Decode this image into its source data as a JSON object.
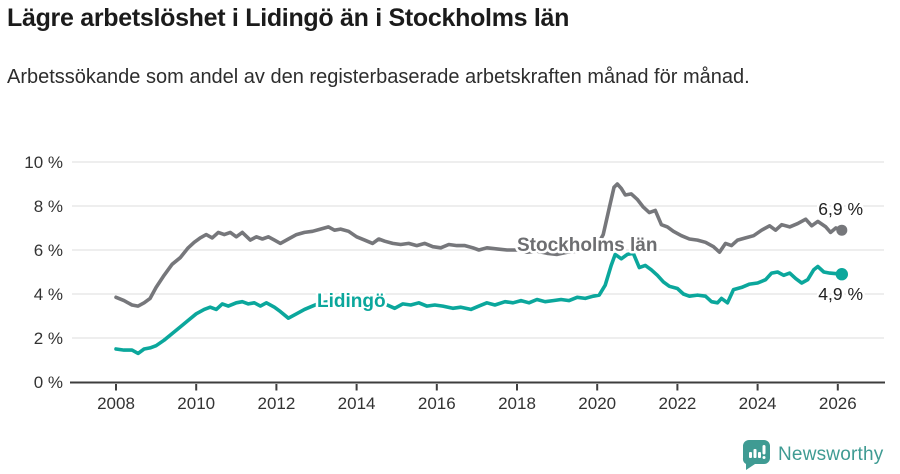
{
  "header": {
    "title": "Lägre arbetslöshet i Lidingö än i Stockholms län",
    "subtitle": "Arbetssökande som andel av den registerbaserade arbetskraften månad för månad."
  },
  "chart_data": {
    "type": "line",
    "title": "Lägre arbetslöshet i Lidingö än i Stockholms län",
    "subtitle": "Arbetssökande som andel av den registerbaserade arbetskraften månad för månad.",
    "unit": "%",
    "grid": "horizontal-only",
    "x_axis": {
      "ticks": [
        2008,
        2010,
        2012,
        2014,
        2016,
        2018,
        2020,
        2022,
        2024,
        2026
      ],
      "range": [
        2006.9,
        2027.15
      ]
    },
    "y_axis": {
      "tick_labels": [
        "10 %",
        "8 %",
        "6 %",
        "4 %",
        "2 %",
        "0 %"
      ],
      "tick_values": [
        10,
        8,
        6,
        4,
        2,
        0
      ],
      "range": [
        0,
        10
      ]
    },
    "series": [
      {
        "name": "Stockholms län",
        "color": "#76777b",
        "label_color": "#6d6e71",
        "end_label": "6,9 %",
        "end_value": 6.9,
        "points": [
          [
            2008.0,
            3.85
          ],
          [
            2008.2,
            3.7
          ],
          [
            2008.4,
            3.5
          ],
          [
            2008.55,
            3.45
          ],
          [
            2008.7,
            3.6
          ],
          [
            2008.85,
            3.8
          ],
          [
            2009.0,
            4.3
          ],
          [
            2009.2,
            4.85
          ],
          [
            2009.4,
            5.35
          ],
          [
            2009.6,
            5.65
          ],
          [
            2009.8,
            6.1
          ],
          [
            2009.95,
            6.35
          ],
          [
            2010.1,
            6.55
          ],
          [
            2010.25,
            6.7
          ],
          [
            2010.4,
            6.55
          ],
          [
            2010.55,
            6.8
          ],
          [
            2010.7,
            6.7
          ],
          [
            2010.85,
            6.8
          ],
          [
            2011.0,
            6.6
          ],
          [
            2011.15,
            6.8
          ],
          [
            2011.35,
            6.45
          ],
          [
            2011.5,
            6.6
          ],
          [
            2011.65,
            6.5
          ],
          [
            2011.8,
            6.6
          ],
          [
            2011.95,
            6.45
          ],
          [
            2012.1,
            6.3
          ],
          [
            2012.3,
            6.5
          ],
          [
            2012.5,
            6.7
          ],
          [
            2012.7,
            6.8
          ],
          [
            2012.9,
            6.85
          ],
          [
            2013.1,
            6.95
          ],
          [
            2013.3,
            7.05
          ],
          [
            2013.45,
            6.9
          ],
          [
            2013.6,
            6.95
          ],
          [
            2013.8,
            6.85
          ],
          [
            2014.0,
            6.6
          ],
          [
            2014.2,
            6.45
          ],
          [
            2014.4,
            6.3
          ],
          [
            2014.55,
            6.5
          ],
          [
            2014.7,
            6.4
          ],
          [
            2014.9,
            6.3
          ],
          [
            2015.1,
            6.25
          ],
          [
            2015.3,
            6.3
          ],
          [
            2015.5,
            6.2
          ],
          [
            2015.7,
            6.3
          ],
          [
            2015.9,
            6.15
          ],
          [
            2016.1,
            6.1
          ],
          [
            2016.3,
            6.25
          ],
          [
            2016.5,
            6.2
          ],
          [
            2016.7,
            6.2
          ],
          [
            2016.9,
            6.1
          ],
          [
            2017.05,
            6.0
          ],
          [
            2017.25,
            6.1
          ],
          [
            2017.5,
            6.05
          ],
          [
            2017.75,
            6.0
          ],
          [
            2018.0,
            6.0
          ],
          [
            2018.25,
            5.9
          ],
          [
            2018.5,
            5.95
          ],
          [
            2018.75,
            5.85
          ],
          [
            2019.0,
            5.8
          ],
          [
            2019.25,
            5.9
          ],
          [
            2019.5,
            5.95
          ],
          [
            2019.75,
            6.05
          ],
          [
            2020.0,
            6.2
          ],
          [
            2020.15,
            6.7
          ],
          [
            2020.3,
            7.9
          ],
          [
            2020.42,
            8.85
          ],
          [
            2020.5,
            9.0
          ],
          [
            2020.6,
            8.8
          ],
          [
            2020.7,
            8.5
          ],
          [
            2020.85,
            8.55
          ],
          [
            2021.0,
            8.3
          ],
          [
            2021.15,
            7.95
          ],
          [
            2021.3,
            7.7
          ],
          [
            2021.45,
            7.8
          ],
          [
            2021.6,
            7.15
          ],
          [
            2021.75,
            7.05
          ],
          [
            2021.9,
            6.85
          ],
          [
            2022.1,
            6.65
          ],
          [
            2022.3,
            6.5
          ],
          [
            2022.5,
            6.45
          ],
          [
            2022.7,
            6.35
          ],
          [
            2022.9,
            6.15
          ],
          [
            2023.05,
            5.9
          ],
          [
            2023.2,
            6.3
          ],
          [
            2023.35,
            6.2
          ],
          [
            2023.5,
            6.45
          ],
          [
            2023.7,
            6.55
          ],
          [
            2023.9,
            6.65
          ],
          [
            2024.1,
            6.9
          ],
          [
            2024.3,
            7.1
          ],
          [
            2024.45,
            6.9
          ],
          [
            2024.6,
            7.15
          ],
          [
            2024.8,
            7.05
          ],
          [
            2025.0,
            7.2
          ],
          [
            2025.2,
            7.4
          ],
          [
            2025.35,
            7.1
          ],
          [
            2025.5,
            7.3
          ],
          [
            2025.7,
            7.05
          ],
          [
            2025.82,
            6.8
          ],
          [
            2025.95,
            7.0
          ],
          [
            2026.1,
            6.9
          ]
        ]
      },
      {
        "name": "Lidingö",
        "color": "#0ba79c",
        "label_color": "#0ba79c",
        "end_label": "4,9 %",
        "end_value": 4.9,
        "points": [
          [
            2008.0,
            1.5
          ],
          [
            2008.2,
            1.45
          ],
          [
            2008.4,
            1.45
          ],
          [
            2008.55,
            1.3
          ],
          [
            2008.7,
            1.5
          ],
          [
            2008.85,
            1.55
          ],
          [
            2009.0,
            1.65
          ],
          [
            2009.2,
            1.9
          ],
          [
            2009.4,
            2.2
          ],
          [
            2009.6,
            2.5
          ],
          [
            2009.8,
            2.8
          ],
          [
            2010.0,
            3.1
          ],
          [
            2010.2,
            3.3
          ],
          [
            2010.35,
            3.4
          ],
          [
            2010.5,
            3.3
          ],
          [
            2010.65,
            3.55
          ],
          [
            2010.8,
            3.45
          ],
          [
            2011.0,
            3.6
          ],
          [
            2011.15,
            3.65
          ],
          [
            2011.3,
            3.55
          ],
          [
            2011.45,
            3.6
          ],
          [
            2011.6,
            3.45
          ],
          [
            2011.75,
            3.6
          ],
          [
            2011.95,
            3.4
          ],
          [
            2012.1,
            3.2
          ],
          [
            2012.3,
            2.9
          ],
          [
            2012.5,
            3.1
          ],
          [
            2012.7,
            3.3
          ],
          [
            2012.9,
            3.45
          ],
          [
            2013.1,
            3.6
          ],
          [
            2013.3,
            3.65
          ],
          [
            2013.5,
            3.6
          ],
          [
            2013.7,
            3.7
          ],
          [
            2013.9,
            3.6
          ],
          [
            2014.1,
            3.65
          ],
          [
            2014.3,
            3.55
          ],
          [
            2014.5,
            3.65
          ],
          [
            2014.7,
            3.55
          ],
          [
            2014.95,
            3.35
          ],
          [
            2015.15,
            3.55
          ],
          [
            2015.35,
            3.5
          ],
          [
            2015.55,
            3.6
          ],
          [
            2015.75,
            3.45
          ],
          [
            2015.95,
            3.5
          ],
          [
            2016.15,
            3.45
          ],
          [
            2016.4,
            3.35
          ],
          [
            2016.6,
            3.4
          ],
          [
            2016.85,
            3.3
          ],
          [
            2017.05,
            3.45
          ],
          [
            2017.25,
            3.6
          ],
          [
            2017.45,
            3.5
          ],
          [
            2017.7,
            3.65
          ],
          [
            2017.9,
            3.6
          ],
          [
            2018.1,
            3.7
          ],
          [
            2018.3,
            3.6
          ],
          [
            2018.5,
            3.75
          ],
          [
            2018.7,
            3.65
          ],
          [
            2018.9,
            3.7
          ],
          [
            2019.1,
            3.75
          ],
          [
            2019.3,
            3.7
          ],
          [
            2019.5,
            3.85
          ],
          [
            2019.7,
            3.8
          ],
          [
            2019.9,
            3.9
          ],
          [
            2020.05,
            3.95
          ],
          [
            2020.2,
            4.4
          ],
          [
            2020.35,
            5.3
          ],
          [
            2020.45,
            5.8
          ],
          [
            2020.6,
            5.6
          ],
          [
            2020.75,
            5.8
          ],
          [
            2020.9,
            5.85
          ],
          [
            2021.05,
            5.2
          ],
          [
            2021.2,
            5.3
          ],
          [
            2021.35,
            5.1
          ],
          [
            2021.5,
            4.85
          ],
          [
            2021.65,
            4.55
          ],
          [
            2021.8,
            4.35
          ],
          [
            2022.0,
            4.25
          ],
          [
            2022.15,
            4.0
          ],
          [
            2022.3,
            3.9
          ],
          [
            2022.5,
            3.95
          ],
          [
            2022.7,
            3.9
          ],
          [
            2022.85,
            3.65
          ],
          [
            2023.0,
            3.6
          ],
          [
            2023.1,
            3.8
          ],
          [
            2023.25,
            3.6
          ],
          [
            2023.4,
            4.2
          ],
          [
            2023.6,
            4.3
          ],
          [
            2023.8,
            4.45
          ],
          [
            2024.0,
            4.5
          ],
          [
            2024.2,
            4.65
          ],
          [
            2024.35,
            4.95
          ],
          [
            2024.5,
            5.0
          ],
          [
            2024.65,
            4.85
          ],
          [
            2024.8,
            4.95
          ],
          [
            2024.95,
            4.7
          ],
          [
            2025.1,
            4.5
          ],
          [
            2025.25,
            4.65
          ],
          [
            2025.4,
            5.1
          ],
          [
            2025.5,
            5.25
          ],
          [
            2025.65,
            5.0
          ],
          [
            2025.8,
            4.95
          ],
          [
            2026.1,
            4.9
          ]
        ]
      }
    ]
  },
  "footer": {
    "brand": "Newsworthy",
    "brand_color": "#3f9b93"
  }
}
